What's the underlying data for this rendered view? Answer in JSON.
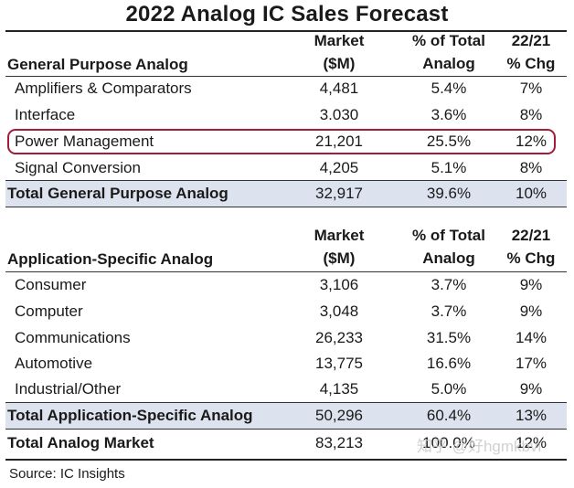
{
  "title": "2022 Analog IC Sales Forecast",
  "columns": {
    "market": [
      "Market",
      "($M)"
    ],
    "share": [
      "% of Total",
      "Analog"
    ],
    "chg": [
      "22/21",
      "% Chg"
    ]
  },
  "general": {
    "heading": "General Purpose Analog",
    "rows": [
      {
        "label": "Amplifiers & Comparators",
        "market": "4,481",
        "share": "5.4%",
        "chg": "7%"
      },
      {
        "label": "Interface",
        "market": "3.030",
        "share": "3.6%",
        "chg": "8%"
      },
      {
        "label": "Power Management",
        "market": "21,201",
        "share": "25.5%",
        "chg": "12%"
      },
      {
        "label": "Signal Conversion",
        "market": "4,205",
        "share": "5.1%",
        "chg": "8%"
      }
    ],
    "total": {
      "label": "Total General Purpose Analog",
      "market": "32,917",
      "share": "39.6%",
      "chg": "10%"
    }
  },
  "application": {
    "heading": "Application-Specific Analog",
    "rows": [
      {
        "label": "Consumer",
        "market": "3,106",
        "share": "3.7%",
        "chg": "9%"
      },
      {
        "label": "Computer",
        "market": "3,048",
        "share": "3.7%",
        "chg": "9%"
      },
      {
        "label": "Communications",
        "market": "26,233",
        "share": "31.5%",
        "chg": "14%"
      },
      {
        "label": "Automotive",
        "market": "13,775",
        "share": "16.6%",
        "chg": "17%"
      },
      {
        "label": "Industrial/Other",
        "market": "4,135",
        "share": "5.0%",
        "chg": "9%"
      }
    ],
    "total": {
      "label": "Total Application-Specific Analog",
      "market": "50,296",
      "share": "60.4%",
      "chg": "13%"
    }
  },
  "grand_total": {
    "label": "Total Analog Market",
    "market": "83,213",
    "share": "100.0%",
    "chg": "12%"
  },
  "source": "Source:  IC Insights",
  "watermark": "知乎 @好hgmkbvi",
  "colors": {
    "total_row_bg": "#dce3ee",
    "highlight_border": "#a01e3c"
  }
}
